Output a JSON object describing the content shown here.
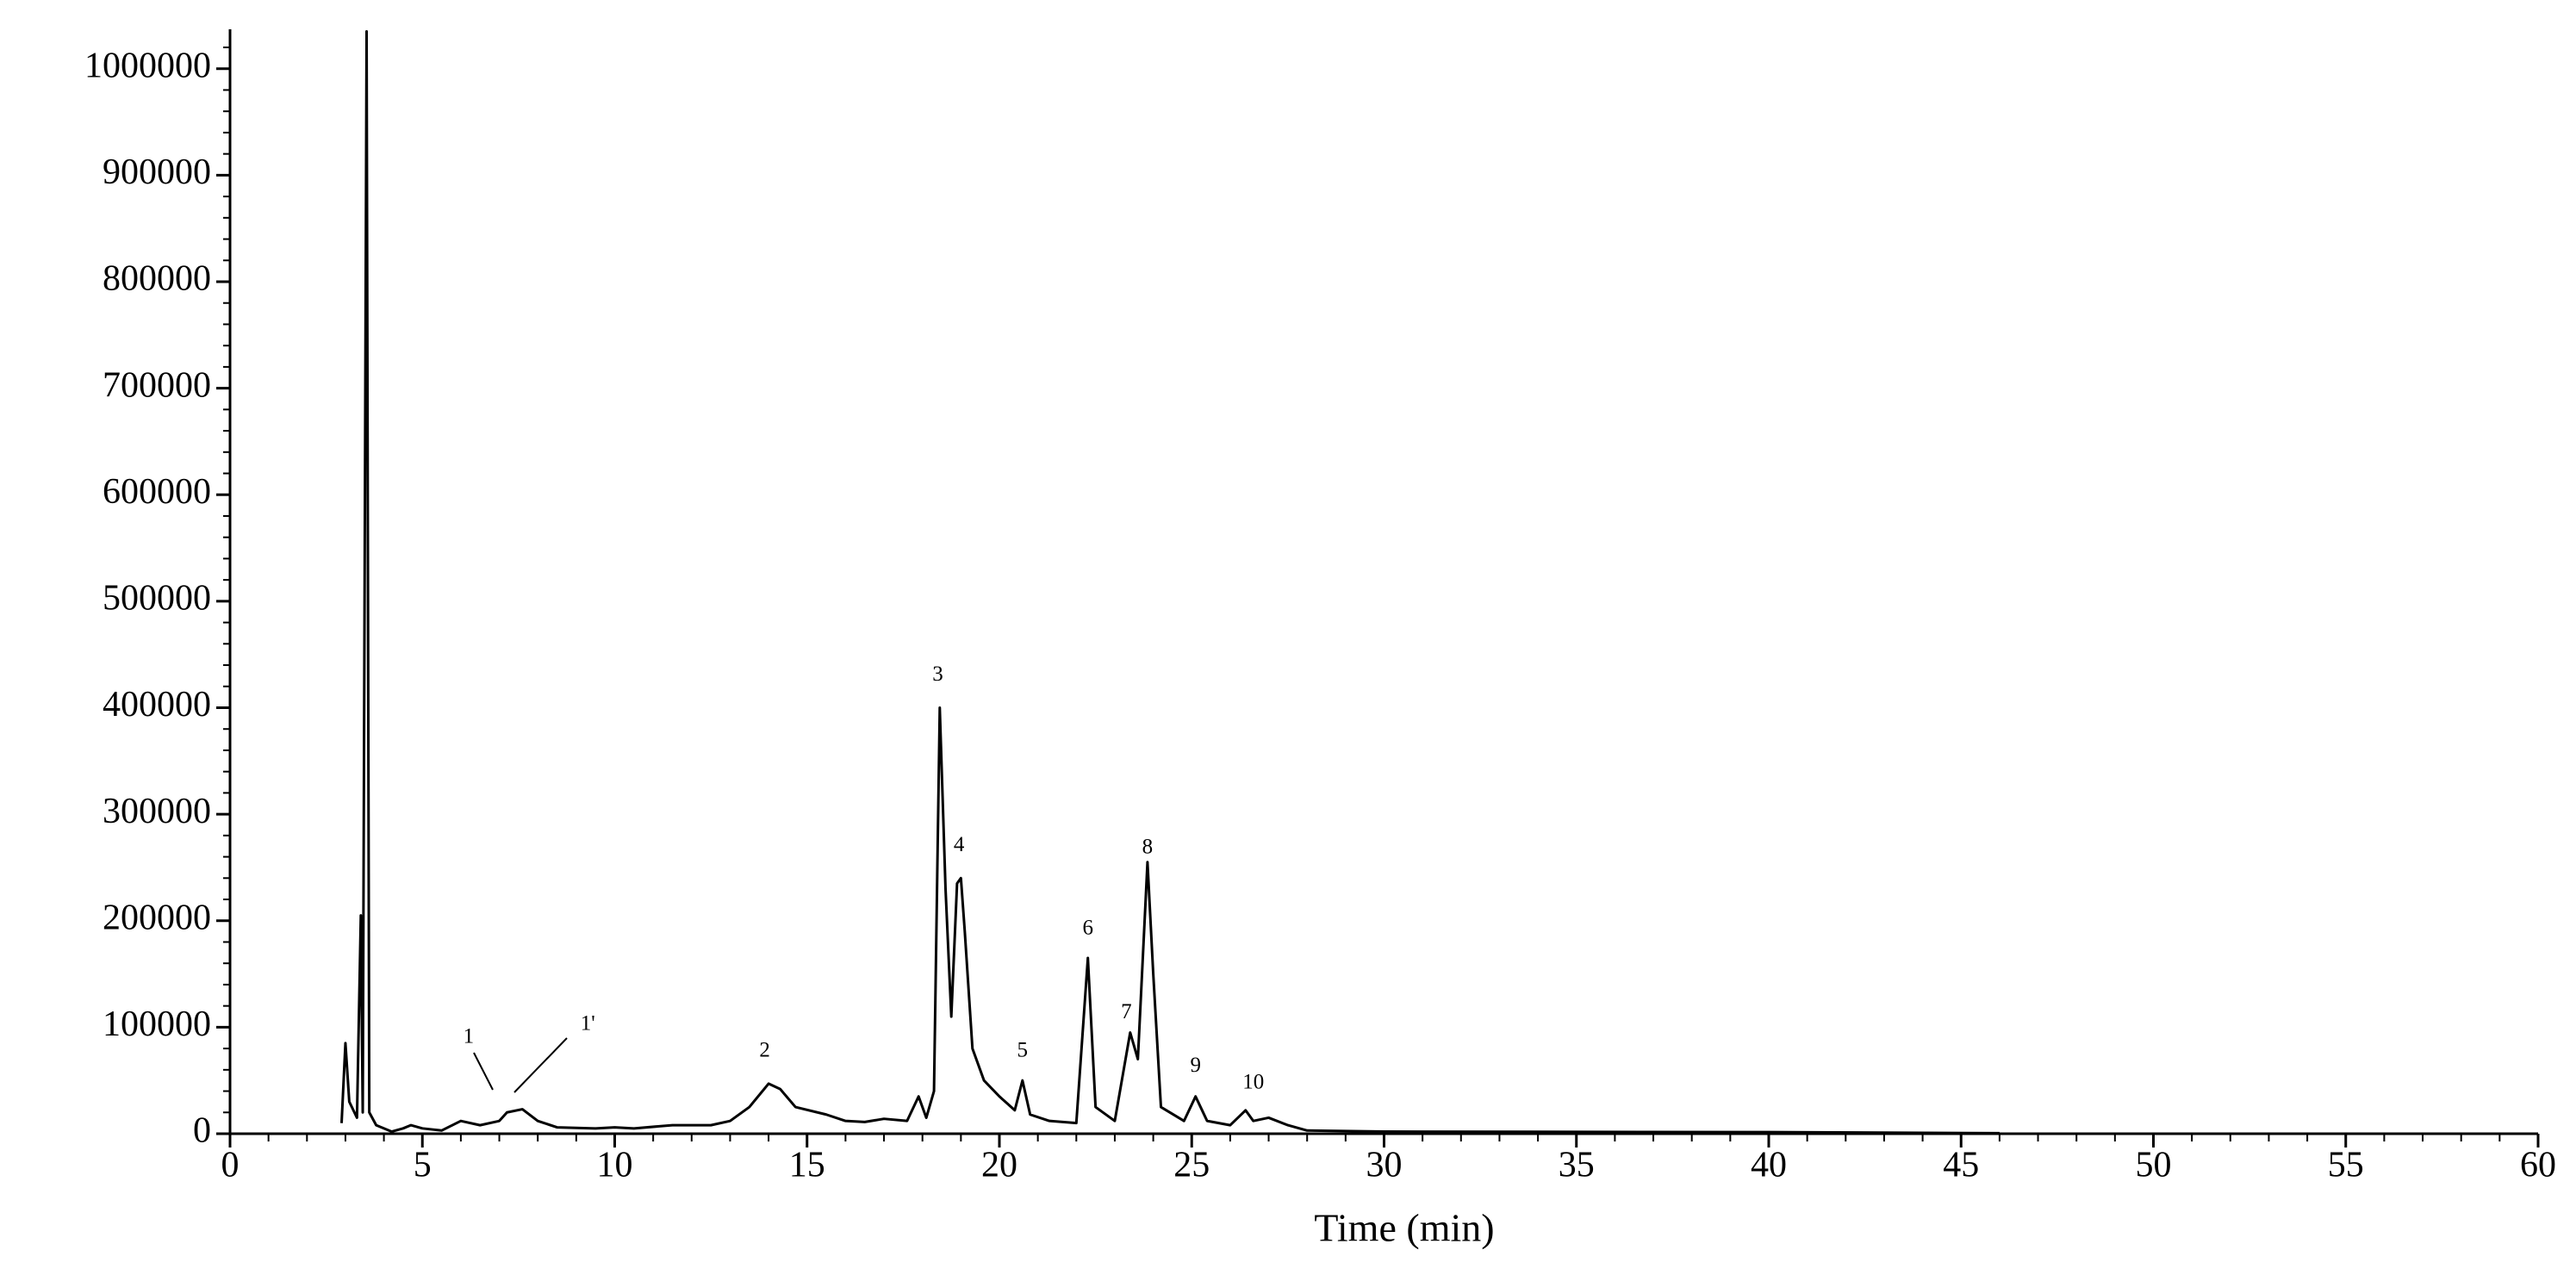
{
  "chart_data": {
    "type": "line",
    "xlabel": "Time (min)",
    "color": "#000000",
    "x": [
      2.9,
      3.0,
      3.1,
      3.3,
      3.4,
      3.45,
      3.55,
      3.62,
      3.8,
      4.2,
      4.5,
      4.7,
      5.0,
      5.5,
      6.0,
      6.5,
      7.0,
      7.2,
      7.6,
      8.0,
      8.5,
      9.5,
      10.0,
      10.5,
      11.5,
      12.5,
      13.0,
      13.5,
      14.0,
      14.3,
      14.7,
      15.5,
      16.0,
      16.5,
      17.0,
      17.6,
      17.9,
      18.1,
      18.3,
      18.45,
      18.6,
      18.75,
      18.9,
      19.0,
      19.1,
      19.3,
      19.6,
      20.0,
      20.4,
      20.6,
      20.8,
      21.3,
      22.0,
      22.3,
      22.5,
      23.0,
      23.4,
      23.6,
      23.85,
      24.0,
      24.2,
      24.8,
      25.1,
      25.4,
      26.0,
      26.4,
      26.6,
      27.0,
      27.5,
      28.0,
      30.0,
      40.0,
      46.0
    ],
    "values": [
      10000,
      85000,
      30000,
      15000,
      205000,
      20000,
      1035000,
      20000,
      8000,
      2000,
      5000,
      8000,
      5000,
      3000,
      12000,
      8000,
      12000,
      20000,
      23000,
      12000,
      6000,
      5000,
      6000,
      5000,
      8000,
      8000,
      12000,
      25000,
      47000,
      42000,
      25000,
      18000,
      12000,
      11000,
      14000,
      12000,
      35000,
      15000,
      40000,
      400000,
      230000,
      110000,
      235000,
      240000,
      190000,
      80000,
      50000,
      35000,
      22000,
      50000,
      18000,
      12000,
      10000,
      165000,
      25000,
      12000,
      95000,
      70000,
      255000,
      150000,
      25000,
      12000,
      35000,
      12000,
      8000,
      22000,
      12000,
      15000,
      8000,
      3000,
      2000,
      1500,
      500
    ],
    "xlim": [
      0,
      60
    ],
    "ylim": [
      0,
      1037000
    ],
    "xticks": [
      0,
      5,
      10,
      15,
      20,
      25,
      30,
      35,
      40,
      45,
      50,
      55,
      60
    ],
    "yticks": [
      0,
      100000,
      200000,
      300000,
      400000,
      500000,
      600000,
      700000,
      800000,
      900000,
      1000000
    ],
    "xminorticks": [
      1,
      2,
      3,
      4,
      6,
      7,
      8,
      9,
      11,
      12,
      13,
      14,
      16,
      17,
      18,
      19,
      21,
      22,
      23,
      24,
      26,
      27,
      28,
      29,
      31,
      32,
      33,
      34,
      36,
      37,
      38,
      39,
      41,
      42,
      43,
      44,
      46,
      47,
      48,
      49,
      51,
      52,
      53,
      54,
      56,
      57,
      58,
      59
    ],
    "yminorticks": [
      20000,
      40000,
      60000,
      80000,
      120000,
      140000,
      160000,
      180000,
      220000,
      240000,
      260000,
      280000,
      320000,
      340000,
      360000,
      380000,
      420000,
      440000,
      460000,
      480000,
      520000,
      540000,
      560000,
      580000,
      620000,
      640000,
      660000,
      680000,
      720000,
      740000,
      760000,
      780000,
      820000,
      840000,
      860000,
      880000,
      920000,
      940000,
      960000,
      980000,
      1020000
    ],
    "annotations": [
      {
        "text": "1",
        "x": 6.2,
        "y": 90000
      },
      {
        "text": "1'",
        "x": 9.3,
        "y": 102000
      },
      {
        "text": "2",
        "x": 13.9,
        "y": 77000
      },
      {
        "text": "3",
        "x": 18.4,
        "y": 430000
      },
      {
        "text": "4",
        "x": 18.95,
        "y": 270000
      },
      {
        "text": "5",
        "x": 20.6,
        "y": 77000
      },
      {
        "text": "6",
        "x": 22.3,
        "y": 192000
      },
      {
        "text": "7",
        "x": 23.3,
        "y": 113000
      },
      {
        "text": "8",
        "x": 23.85,
        "y": 268000
      },
      {
        "text": "9",
        "x": 25.1,
        "y": 63000
      },
      {
        "text": "10",
        "x": 26.6,
        "y": 47000
      }
    ]
  }
}
